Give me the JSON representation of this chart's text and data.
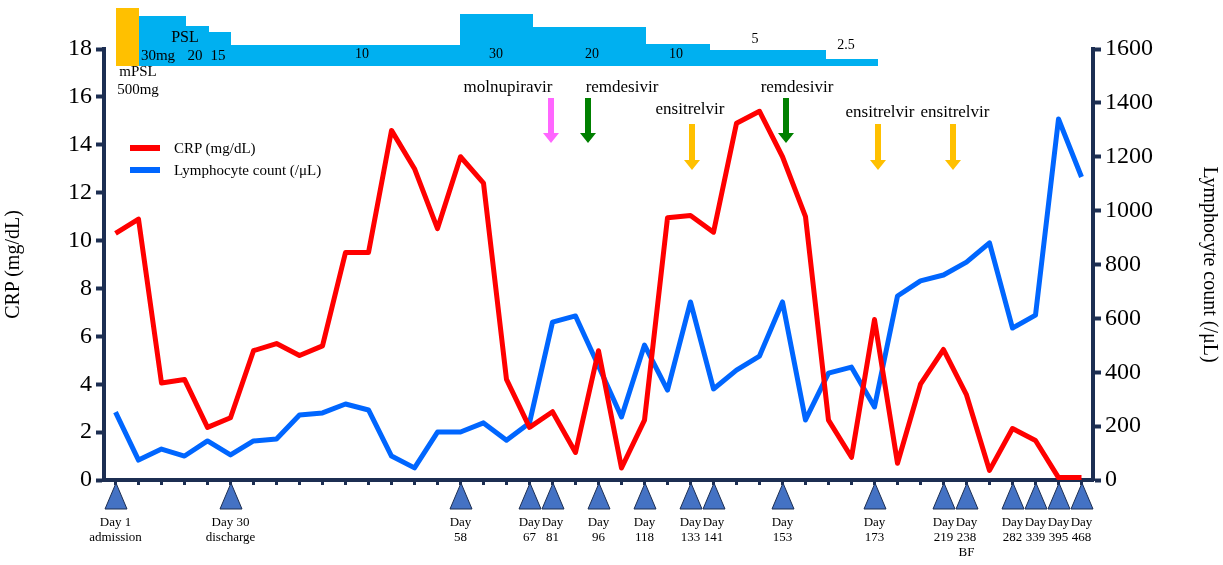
{
  "chart_data": {
    "type": "line",
    "ylabel": "CRP (mg/dL)",
    "y2label": "Lymphocyte count (/μL)",
    "categories": [
      "Day 1\nadmission",
      null,
      null,
      null,
      null,
      "Day 30\ndischarge",
      null,
      null,
      null,
      null,
      null,
      null,
      null,
      null,
      null,
      "Day\n58",
      null,
      null,
      "Day\n67",
      "Day\n81",
      null,
      "Day\n96",
      null,
      "Day\n118",
      null,
      "Day\n133",
      "Day\n141",
      null,
      null,
      "Day\n153",
      null,
      null,
      null,
      "Day\n173",
      null,
      null,
      "Day\n219",
      "Day\n238\nBF",
      null,
      "Day\n282",
      "Day\n339",
      "Day\n395",
      "Day\n468"
    ],
    "series": [
      {
        "name": "CRP (mg/dL)",
        "color": "#ff0000",
        "values": [
          10.3,
          10.9,
          4.05,
          4.2,
          2.2,
          2.6,
          5.4,
          5.7,
          5.2,
          5.6,
          9.5,
          9.5,
          14.6,
          13.0,
          10.5,
          13.5,
          12.4,
          4.2,
          2.2,
          2.85,
          1.15,
          5.4,
          0.5,
          2.5,
          10.95,
          11.05,
          10.35,
          14.9,
          15.4,
          13.5,
          11.0,
          2.5,
          0.95,
          6.7,
          0.7,
          4.0,
          5.45,
          3.55,
          0.4,
          2.15,
          1.65,
          0.1,
          0.1
        ]
      },
      {
        "name": "Lymphocyte count (/μL)",
        "color": "#0066ff",
        "axis": "y2",
        "values": [
          252,
          74,
          115,
          89,
          145,
          93,
          145,
          152,
          241,
          249,
          282,
          260,
          89,
          45,
          178,
          178,
          212,
          148,
          212,
          586,
          609,
          423,
          234,
          501,
          334,
          661,
          338,
          408,
          460,
          661,
          223,
          397,
          419,
          271,
          683,
          739,
          761,
          809,
          880,
          564,
          612,
          1340,
          1125
        ]
      }
    ],
    "ylim": [
      0,
      18
    ],
    "yticks": [
      0,
      2,
      4,
      6,
      8,
      10,
      12,
      14,
      16,
      18
    ],
    "y2lim": [
      0,
      1600
    ],
    "y2ticks": [
      0,
      200,
      400,
      600,
      800,
      1000,
      1200,
      1400,
      1600
    ],
    "grid": false,
    "legend": "top left",
    "marker": "none",
    "line_style": "solid",
    "annotations": [
      "PSL",
      "30mg",
      "20",
      "15",
      "10",
      "30",
      "20",
      "10",
      "5",
      "2.5",
      "mPSL 500mg",
      "molnupiravir",
      "remdesivir",
      "ensitrelvir",
      "remdesivir",
      "ensitrelvir",
      "ensitrelvir"
    ]
  }
}
